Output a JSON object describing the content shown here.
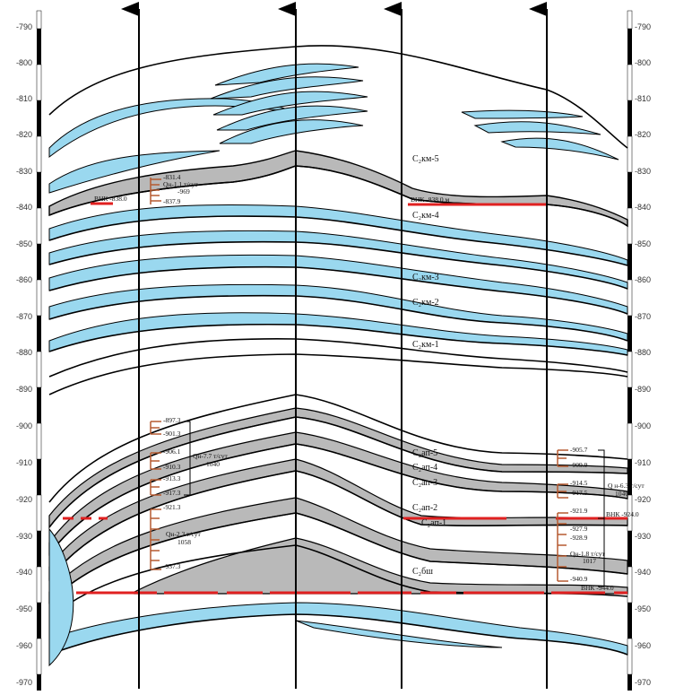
{
  "depth_axis": {
    "ticks": [
      "-790",
      "-800",
      "-810",
      "-820",
      "-830",
      "-840",
      "-850",
      "-860",
      "-870",
      "-880",
      "-890",
      "-900",
      "-910",
      "-920",
      "-930",
      "-940",
      "-950",
      "-960",
      "-970"
    ]
  },
  "layer_labels": [
    {
      "id": "c2km5",
      "text": "C₂км-5"
    },
    {
      "id": "c2km4",
      "text": "C₂км-4"
    },
    {
      "id": "c2km3",
      "text": "C₂км-3"
    },
    {
      "id": "c2km2",
      "text": "C₂км-2"
    },
    {
      "id": "c2km1",
      "text": "C₂км-1"
    },
    {
      "id": "c2ap5",
      "text": "C₂ап-5"
    },
    {
      "id": "c2ap4",
      "text": "C₂ап-4"
    },
    {
      "id": "c2ap3",
      "text": "C₂ап-3"
    },
    {
      "id": "c2ap2",
      "text": "C₂ап-2"
    },
    {
      "id": "c2ap1",
      "text": "C₂ап-1"
    },
    {
      "id": "c2bsh",
      "text": "C₂бш"
    }
  ],
  "contacts": {
    "vnk_left": "ВНК -838.0",
    "vnk_mid": "ВНК -838.0 м",
    "vnk_right": "ВНК -924.0",
    "vnk_right_low": "ВНК -944.0"
  },
  "well_annotations": {
    "w1_top": [
      "-831.4",
      "Qн-1.1 т/сут",
      "-969",
      "-837.9"
    ],
    "w1_mid": [
      "-897.3",
      "-901.3",
      "-906.1",
      "-910.3",
      "-913.3",
      "-917.3",
      "Qн-7.7 т/сут",
      "1040"
    ],
    "w1_low": [
      "-921.3",
      "Qн-2.3 т/сут",
      "1058",
      "-937.3"
    ],
    "w4_mid": [
      "-905.7",
      "-909.9",
      "-914.5",
      "-917.5",
      "-921.9",
      "Q н-6.3 т/сут",
      "1040"
    ],
    "w4_low": [
      "-927.9",
      "-928.9",
      "Qн-1.8 т/сут",
      "1017",
      "-940.9"
    ]
  },
  "colors": {
    "water": "#9ad8ef",
    "gray": "#b9b9b9",
    "red": "#e02020",
    "brown": "#b55a30",
    "line": "#000000"
  }
}
